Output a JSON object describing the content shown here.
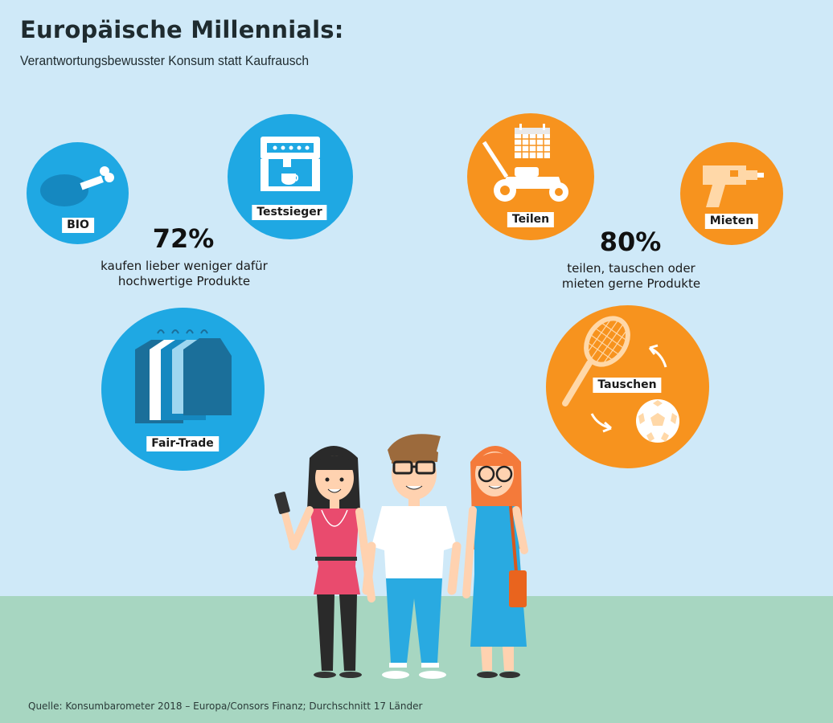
{
  "header": {
    "title": "Europäische Millennials:",
    "subtitle": "Verantwortungsbewusster Konsum statt Kaufrausch"
  },
  "left": {
    "percent": "72%",
    "description_line1": "kaufen lieber weniger dafür",
    "description_line2": "hochwertige Produkte",
    "labels": {
      "bio": "BIO",
      "testsieger": "Testsieger",
      "fairtrade": "Fair-Trade"
    }
  },
  "right": {
    "percent": "80%",
    "description_line1": "teilen, tauschen oder",
    "description_line2": "mieten gerne Produkte",
    "labels": {
      "teilen": "Teilen",
      "mieten": "Mieten",
      "tauschen": "Tauschen"
    }
  },
  "footer": {
    "source": "Quelle: Konsumbarometer 2018 – Europa/Consors Finanz; Durchschnitt 17 Länder"
  },
  "colors": {
    "blue": "#1fa8e3",
    "orange": "#f7931e",
    "sky": "#cfe9f8",
    "ground": "#a7d6c1"
  },
  "icons": [
    "meat-bone-icon",
    "coffee-machine-icon",
    "clothes-rack-icon",
    "lawnmower-icon",
    "calendar-icon",
    "drill-icon",
    "tennis-racket-icon",
    "soccer-ball-icon",
    "swap-arrows-icon"
  ]
}
